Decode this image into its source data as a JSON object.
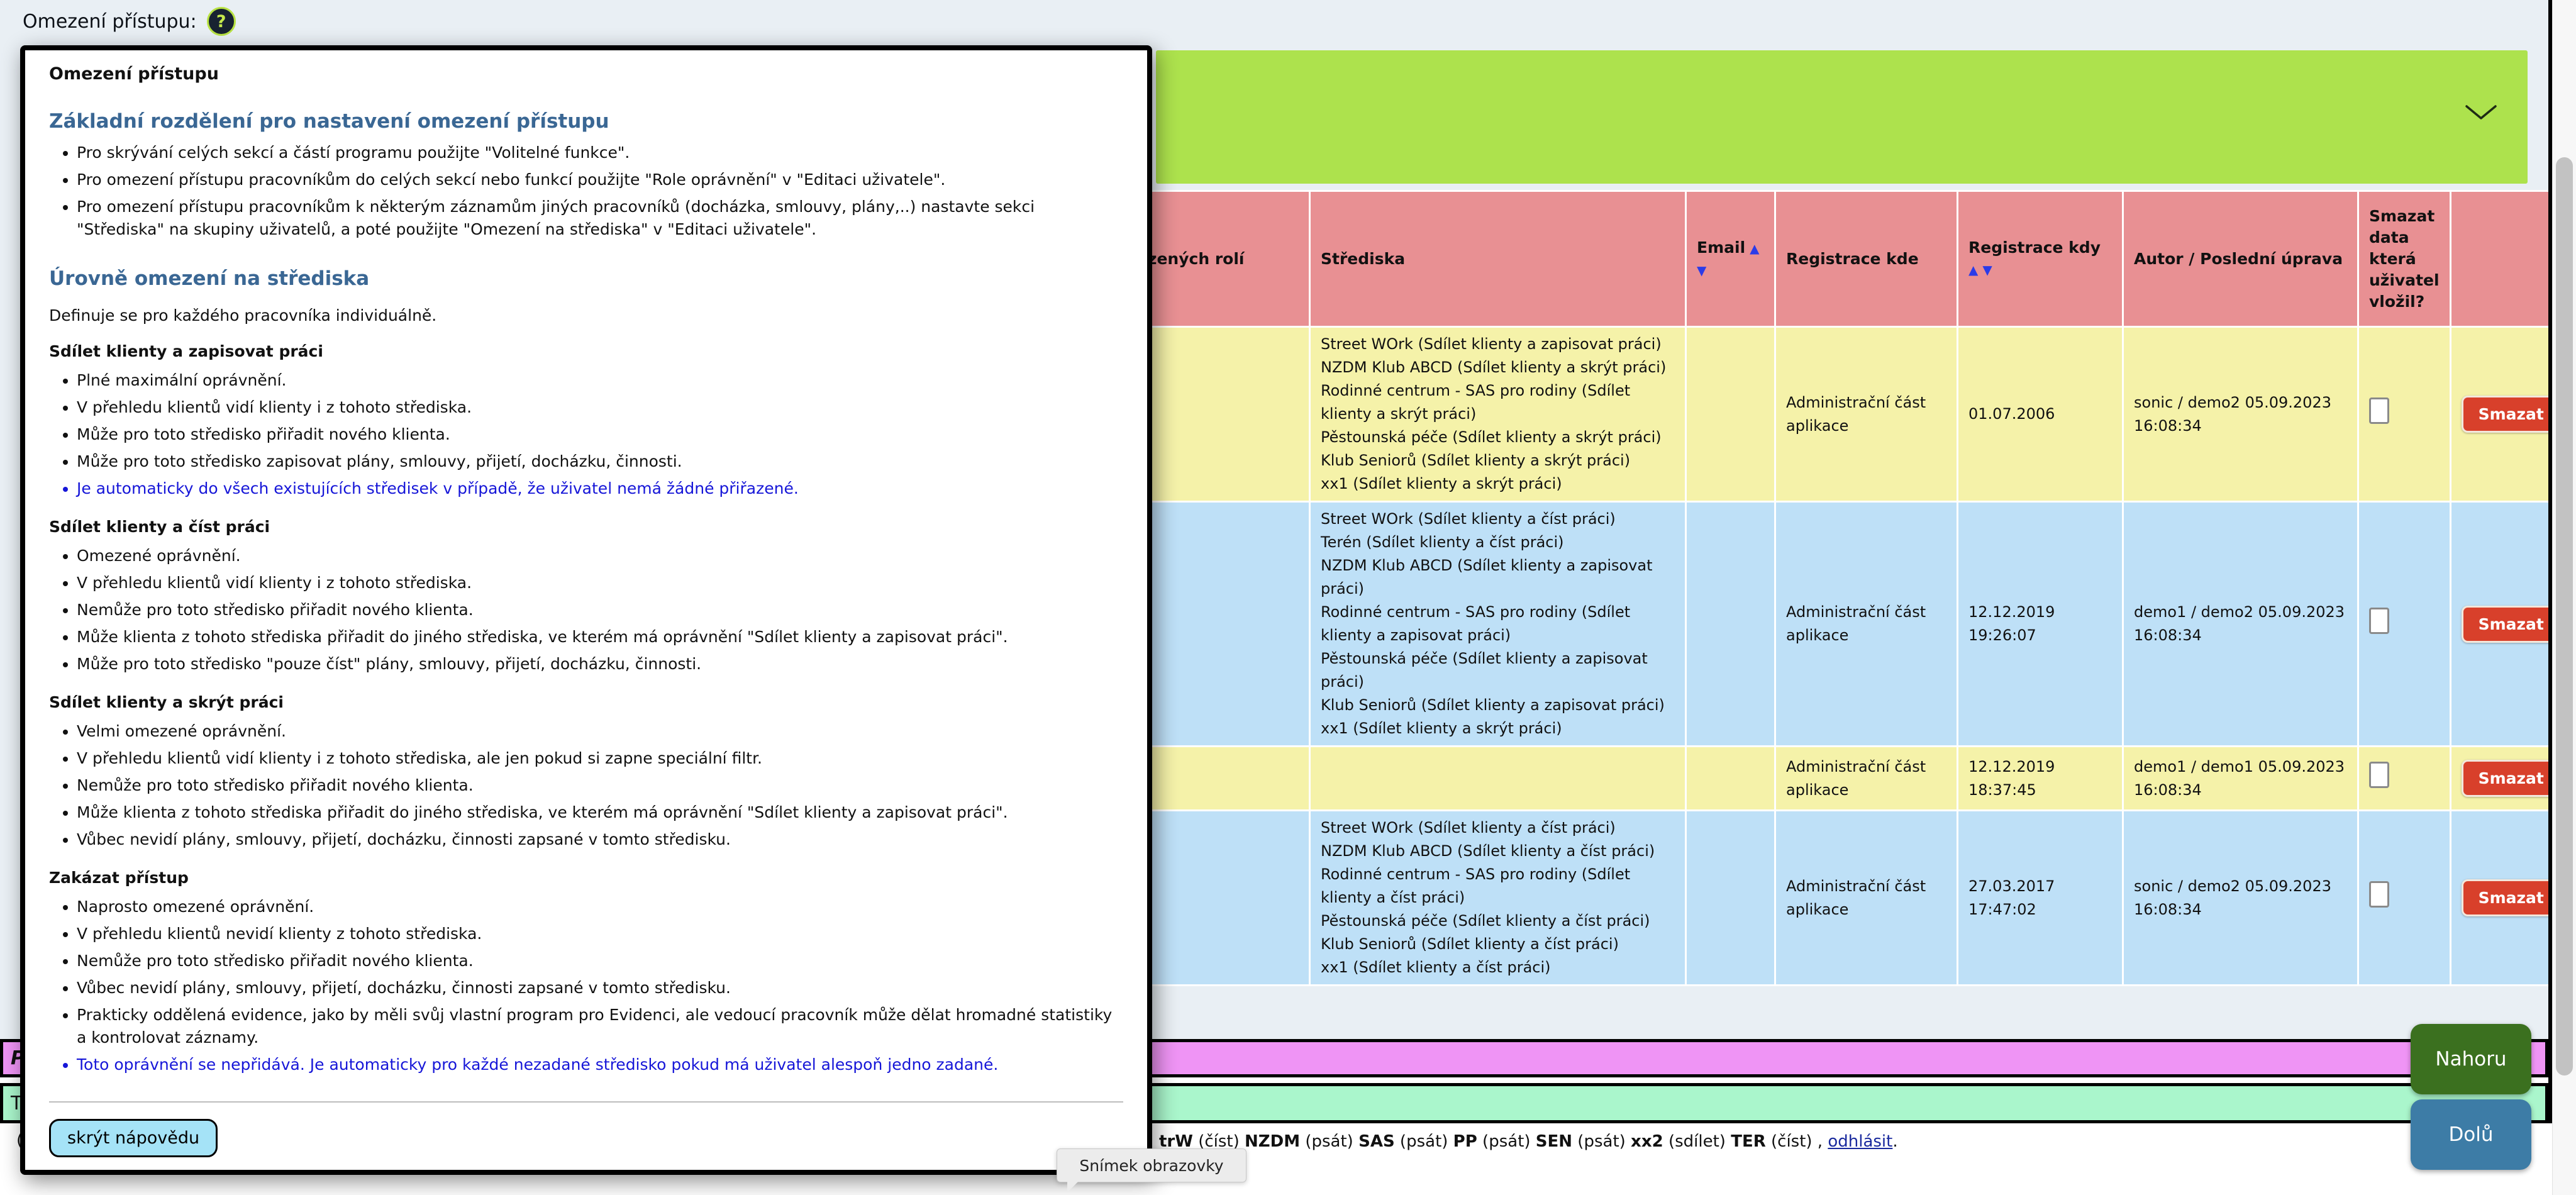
{
  "page": {
    "top_label": "Omezení přístupu:",
    "help_icon_glyph": "?",
    "fragments": {
      "magenta_bar": "P",
      "green_bar": "T",
      "bottom_left": "("
    },
    "colors": {
      "page_bg": "#e9eff4",
      "banner_green": "#ade24d",
      "header_salmon": "#e89093",
      "row_yellow": "#f5f2a9",
      "row_blue": "#bee0f7",
      "delete_red": "#d8402b",
      "bar_magenta": "#ef94f5",
      "bar_green": "#aaf6cc",
      "btn_up_green": "#3b701f",
      "btn_down_blue": "#3d7ca6",
      "heading_blue": "#3a6794",
      "link_blue": "#1616d8"
    }
  },
  "help_popup": {
    "title": "Omezení přístupu",
    "sections": [
      {
        "heading": "Základní rozdělení pro nastavení omezení přístupu",
        "bullets": [
          {
            "text": "Pro skrývání celých sekcí a částí programu použijte \"Volitelné funkce\"."
          },
          {
            "text": "Pro omezení přístupu pracovníkům do celých sekcí nebo funkcí použijte \"Role oprávnění\" v \"Editaci uživatele\"."
          },
          {
            "text": "Pro omezení přístupu pracovníkům k některým záznamům jiných pracovníků (docházka, smlouvy, plány,..) nastavte sekci \"Střediska\" na skupiny uživatelů, a poté použijte \"Omezení na střediska\" v \"Editaci uživatele\"."
          }
        ]
      },
      {
        "heading": "Úrovně omezení na střediska",
        "intro": "Definuje se pro každého pracovníka individuálně.",
        "groups": [
          {
            "title": "Sdílet klienty a zapisovat práci",
            "bullets": [
              {
                "text": "Plné maximální oprávnění."
              },
              {
                "text": "V přehledu klientů vidí klienty i z tohoto střediska."
              },
              {
                "text": "Může pro toto středisko přiřadit nového klienta."
              },
              {
                "text": "Může pro toto středisko zapisovat plány, smlouvy, přijetí, docházku, činnosti."
              },
              {
                "text": "Je automaticky do všech existujících středisek v případě, že uživatel nemá žádné přiřazené.",
                "link": true
              }
            ]
          },
          {
            "title": "Sdílet klienty a číst práci",
            "bullets": [
              {
                "text": "Omezené oprávnění."
              },
              {
                "text": "V přehledu klientů vidí klienty i z tohoto střediska."
              },
              {
                "text": "Nemůže pro toto středisko přiřadit nového klienta."
              },
              {
                "text": "Může klienta z tohoto střediska přiřadit do jiného střediska, ve kterém má oprávnění \"Sdílet klienty a zapisovat práci\"."
              },
              {
                "text": "Může pro toto středisko \"pouze číst\" plány, smlouvy, přijetí, docházku, činnosti."
              }
            ]
          },
          {
            "title": "Sdílet klienty a skrýt práci",
            "bullets": [
              {
                "text": "Velmi omezené oprávnění."
              },
              {
                "text": "V přehledu klientů vidí klienty i z tohoto střediska, ale jen pokud si zapne speciální filtr."
              },
              {
                "text": "Nemůže pro toto středisko přiřadit nového klienta."
              },
              {
                "text": "Může klienta z tohoto střediska přiřadit do jiného střediska, ve kterém má oprávnění \"Sdílet klienty a zapisovat práci\"."
              },
              {
                "text": "Vůbec nevidí plány, smlouvy, přijetí, docházku, činnosti zapsané v tomto středisku."
              }
            ]
          },
          {
            "title": "Zakázat přístup",
            "bullets": [
              {
                "text": "Naprosto omezené oprávnění."
              },
              {
                "text": "V přehledu klientů nevidí klienty z tohoto střediska."
              },
              {
                "text": "Nemůže pro toto středisko přiřadit nového klienta."
              },
              {
                "text": "Vůbec nevidí plány, smlouvy, přijetí, docházku, činnosti zapsané v tomto středisku."
              },
              {
                "text": "Prakticky oddělená evidence, jako by měli svůj vlastní program pro Evidenci, ale vedoucí pracovník může dělat hromadné statistiky a kontrolovat záznamy."
              },
              {
                "text": "Toto oprávnění se nepřidává. Je automaticky pro každé nezadané středisko pokud má uživatel alespoň jedno zadané.",
                "link": true
              }
            ]
          }
        ]
      }
    ],
    "hide_button": "skrýt nápovědu"
  },
  "table": {
    "columns": [
      {
        "label": "Počet přiřazených rolí"
      },
      {
        "label": "Střediska"
      },
      {
        "label": "Email",
        "sort": "inline"
      },
      {
        "label": "Registrace kde"
      },
      {
        "label": "Registrace kdy",
        "sort": "below"
      },
      {
        "label": "Autor / Poslední úprava"
      },
      {
        "label": "Smazat data která uživatel vložil?"
      },
      {
        "label": ""
      }
    ],
    "sort_up": "▲",
    "sort_down": "▼",
    "delete_label": "Smazat",
    "rows": [
      {
        "bg": "yellow",
        "strediska": [
          "Street WOrk (Sdílet klienty a zapisovat práci)",
          "NZDM Klub ABCD (Sdílet klienty a skrýt práci)",
          "Rodinné centrum - SAS pro rodiny (Sdílet klienty a skrýt práci)",
          "Pěstounská péče (Sdílet klienty a skrýt práci)",
          "Klub Seniorů (Sdílet klienty a skrýt práci)",
          "xx1 (Sdílet klienty a skrýt práci)"
        ],
        "email": "",
        "reg_kde": "Administrační část aplikace",
        "reg_kdy": "01.07.2006",
        "autor": "sonic / demo2 05.09.2023 16:08:34",
        "delete_checked": false
      },
      {
        "bg": "blue",
        "strediska": [
          "Street WOrk (Sdílet klienty a číst práci)",
          "Terén (Sdílet klienty a číst práci)",
          "NZDM Klub ABCD (Sdílet klienty a zapisovat práci)",
          "Rodinné centrum - SAS pro rodiny (Sdílet klienty a zapisovat práci)",
          "Pěstounská péče (Sdílet klienty a zapisovat práci)",
          "Klub Seniorů (Sdílet klienty a zapisovat práci)",
          "xx1 (Sdílet klienty a skrýt práci)"
        ],
        "email": "",
        "reg_kde": "Administrační část aplikace",
        "reg_kdy": "12.12.2019 19:26:07",
        "autor": "demo1 / demo2 05.09.2023 16:08:34",
        "delete_checked": false
      },
      {
        "bg": "yellow",
        "strediska": [],
        "email": "",
        "reg_kde": "Administrační část aplikace",
        "reg_kdy": "12.12.2019 18:37:45",
        "autor": "demo1 / demo1 05.09.2023 16:08:34",
        "delete_checked": false
      },
      {
        "bg": "blue",
        "strediska": [
          "Street WOrk (Sdílet klienty a číst práci)",
          "NZDM Klub ABCD (Sdílet klienty a číst práci)",
          "Rodinné centrum - SAS pro rodiny (Sdílet klienty a číst práci)",
          "Pěstounská péče (Sdílet klienty a číst práci)",
          "Klub Seniorů (Sdílet klienty a číst práci)",
          "xx1 (Sdílet klienty a číst práci)"
        ],
        "email": "",
        "reg_kde": "Administrační část aplikace",
        "reg_kdy": "27.03.2017 17:47:02",
        "autor": "sonic / demo2 05.09.2023 16:08:34",
        "delete_checked": false
      }
    ]
  },
  "status_bar": {
    "tokens": [
      {
        "text": "trW",
        "bold": true
      },
      {
        "text": " (číst) "
      },
      {
        "text": "NZDM",
        "bold": true
      },
      {
        "text": " (psát) "
      },
      {
        "text": "SAS",
        "bold": true
      },
      {
        "text": " (psát) "
      },
      {
        "text": "PP",
        "bold": true
      },
      {
        "text": " (psát) "
      },
      {
        "text": "SEN",
        "bold": true
      },
      {
        "text": " (psát) "
      },
      {
        "text": "xx2",
        "bold": true
      },
      {
        "text": " (sdílet) "
      },
      {
        "text": "TER",
        "bold": true
      },
      {
        "text": " (číst) , "
      }
    ],
    "logout_link": "odhlásit",
    "suffix": "."
  },
  "nav_buttons": {
    "up": "Nahoru",
    "down": "Dolů"
  },
  "tooltip": {
    "text": "Snímek obrazovky"
  }
}
